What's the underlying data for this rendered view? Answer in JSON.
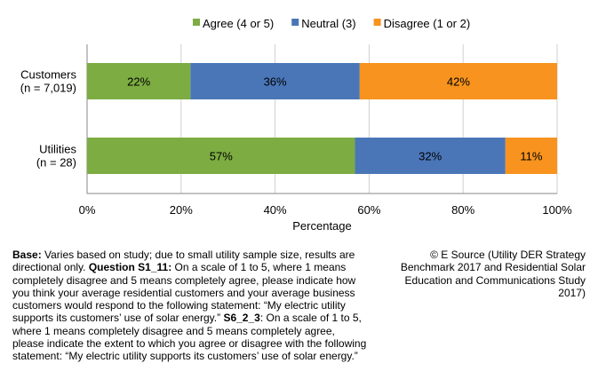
{
  "chart_data": {
    "type": "bar",
    "orientation": "horizontal",
    "stacked": true,
    "categories": [
      "Customers\n(n = 7,019)",
      "Utilities\n(n = 28)"
    ],
    "category_lines": [
      [
        "Customers",
        "(n = 7,019)"
      ],
      [
        "Utilities",
        "(n = 28)"
      ]
    ],
    "series": [
      {
        "name": "Agree (4 or 5)",
        "color": "#7cac42",
        "values": [
          22,
          57
        ],
        "labels": [
          "22%",
          "57%"
        ]
      },
      {
        "name": "Neutral (3)",
        "color": "#4a76b8",
        "values": [
          36,
          32
        ],
        "labels": [
          "36%",
          "32%"
        ]
      },
      {
        "name": "Disagree (1 or 2)",
        "color": "#f7931e",
        "values": [
          42,
          11
        ],
        "labels": [
          "42%",
          "11%"
        ]
      }
    ],
    "xlabel": "Percentage",
    "ylabel": "",
    "xlim": [
      0,
      100
    ],
    "xticks": [
      "0%",
      "20%",
      "40%",
      "60%",
      "80%",
      "100%"
    ],
    "grid": "vertical",
    "legend": "top"
  },
  "footnote": {
    "base_label": "Base:",
    "base_text": " Varies based on study; due to small utility sample size, results are directional only. ",
    "q1_label": "Question S1_11:",
    "q1_text": " On a scale of 1 to 5, where 1 means completely disagree and 5 means completely agree, please indicate how you think your average residential customers and your average business customers would respond to the following statement: “My electric utility supports its customers’ use of solar energy.” ",
    "q2_label": "S6_2_3",
    "q2_text": ": On a scale of 1 to 5, where 1 means completely disagree and 5 means completely agree, please indicate the extent to which you agree or disagree with the following statement: “My electric utility supports its customers’ use of solar energy.”"
  },
  "credit": "© E Source (Utility DER Strategy Benchmark 2017 and Residential Solar Education and Communications Study 2017)"
}
